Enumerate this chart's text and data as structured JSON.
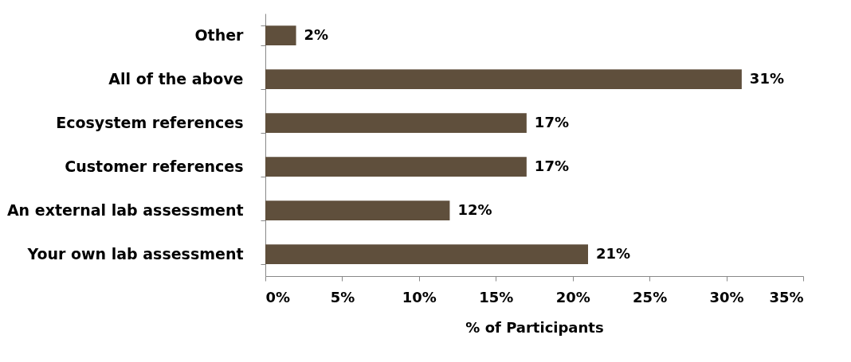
{
  "chart_data": {
    "type": "bar",
    "orientation": "horizontal",
    "xlabel": "% of Participants",
    "categories": [
      "Other",
      "All of the above",
      "Ecosystem references",
      "Customer references",
      "An external lab assessment",
      "Your own lab assessment"
    ],
    "values": [
      2,
      31,
      17,
      17,
      12,
      21
    ],
    "value_labels": [
      "2%",
      "31%",
      "17%",
      "17%",
      "12%",
      "21%"
    ],
    "color": "#5f4f3c",
    "xlim": [
      0,
      35
    ],
    "xticks": [
      {
        "value": 0,
        "label": "0%"
      },
      {
        "value": 5,
        "label": "5%"
      },
      {
        "value": 10,
        "label": "10%"
      },
      {
        "value": 15,
        "label": "15%"
      },
      {
        "value": 20,
        "label": "20%"
      },
      {
        "value": 25,
        "label": "25%"
      },
      {
        "value": 30,
        "label": "30%"
      },
      {
        "value": 35,
        "label": "35%"
      }
    ],
    "grid": false
  }
}
